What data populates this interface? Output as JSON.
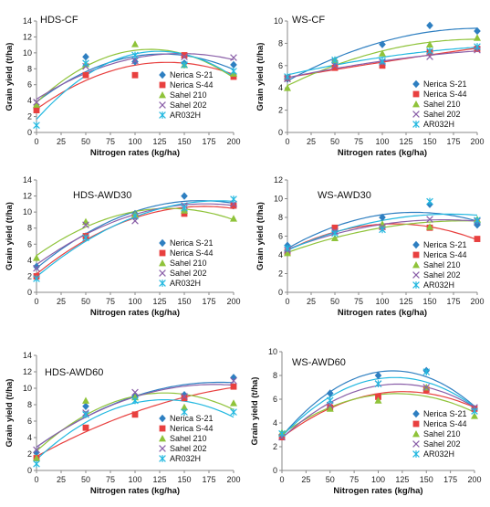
{
  "colors": {
    "Nerica S-21": "#2e7fc1",
    "Nerica S-44": "#e8403f",
    "Sahel 210": "#8fc33a",
    "Sahel 202": "#8a5fa8",
    "AR032H": "#22b8e0"
  },
  "markers": {
    "Nerica S-21": "diamond",
    "Nerica S-44": "square",
    "Sahel 210": "triangle",
    "Sahel 202": "x",
    "AR032H": "asterisk"
  },
  "chart_data": [
    {
      "type": "scatter",
      "title": "HDS-CF",
      "xlabel": "Nitrogen rates (kg/ha)",
      "ylabel": "Grain yield (t/ha)",
      "xlim": [
        0,
        200
      ],
      "ylim": [
        0,
        14
      ],
      "xticks": [
        0,
        25,
        50,
        75,
        100,
        125,
        150,
        175,
        200
      ],
      "yticks": [
        0,
        2,
        4,
        6,
        8,
        10,
        12,
        14
      ],
      "x": [
        0,
        50,
        100,
        150,
        200
      ],
      "legend": "right",
      "series": [
        {
          "name": "Nerica S-21",
          "values": [
            3.0,
            9.5,
            8.9,
            8.7,
            8.5
          ]
        },
        {
          "name": "Nerica S-44",
          "values": [
            2.8,
            7.2,
            7.2,
            9.7,
            7.0
          ]
        },
        {
          "name": "Sahel 210",
          "values": [
            3.5,
            8.6,
            11.1,
            8.5,
            7.4
          ]
        },
        {
          "name": "Sahel 202",
          "values": [
            3.8,
            8.3,
            9.0,
            9.5,
            9.4
          ]
        },
        {
          "name": "AR032H",
          "values": [
            0.9,
            8.7,
            9.7,
            8.5,
            7.7
          ]
        }
      ]
    },
    {
      "type": "scatter",
      "title": "WS-CF",
      "xlabel": "Nitrogen rates (kg/ha)",
      "ylabel": "Grain yield (t/ha)",
      "xlim": [
        0,
        200
      ],
      "ylim": [
        0,
        10
      ],
      "xticks": [
        0,
        25,
        50,
        75,
        100,
        125,
        150,
        175,
        200
      ],
      "yticks": [
        0,
        2,
        4,
        6,
        8,
        10
      ],
      "x": [
        0,
        50,
        100,
        150,
        200
      ],
      "legend": "right",
      "series": [
        {
          "name": "Nerica S-21",
          "values": [
            4.8,
            6.4,
            7.9,
            9.6,
            9.1
          ]
        },
        {
          "name": "Nerica S-44",
          "values": [
            4.9,
            5.8,
            6.0,
            7.2,
            7.5
          ]
        },
        {
          "name": "Sahel 210",
          "values": [
            4.0,
            6.5,
            7.1,
            7.9,
            8.5
          ]
        },
        {
          "name": "Sahel 202",
          "values": [
            4.8,
            6.0,
            6.3,
            6.8,
            7.4
          ]
        },
        {
          "name": "AR032H",
          "values": [
            5.0,
            6.5,
            6.4,
            7.3,
            7.7
          ]
        }
      ]
    },
    {
      "type": "scatter",
      "title": "HDS-AWD30",
      "xlabel": "Nitrogen rates (kg/ha)",
      "ylabel": "Grain yield (t/ha)",
      "xlim": [
        0,
        200
      ],
      "ylim": [
        0,
        14
      ],
      "xticks": [
        0,
        25,
        50,
        75,
        100,
        125,
        150,
        175,
        200
      ],
      "yticks": [
        0,
        2,
        4,
        6,
        8,
        10,
        12,
        14
      ],
      "x": [
        0,
        50,
        100,
        150,
        200
      ],
      "legend": "right",
      "series": [
        {
          "name": "Nerica S-21",
          "values": [
            3.2,
            7.0,
            9.8,
            12.0,
            10.8
          ]
        },
        {
          "name": "Nerica S-44",
          "values": [
            2.0,
            7.0,
            9.5,
            9.8,
            10.8
          ]
        },
        {
          "name": "Sahel 210",
          "values": [
            4.3,
            8.8,
            9.7,
            10.2,
            9.2
          ]
        },
        {
          "name": "Sahel 202",
          "values": [
            3.0,
            8.4,
            8.9,
            10.8,
            11.0
          ]
        },
        {
          "name": "AR032H",
          "values": [
            1.7,
            6.8,
            9.5,
            10.5,
            11.6
          ]
        }
      ]
    },
    {
      "type": "scatter",
      "title": "WS-AWD30",
      "xlabel": "Nitrogen rates (kg/ha)",
      "ylabel": "Grain yield (t/ha)",
      "xlim": [
        0,
        200
      ],
      "ylim": [
        0,
        12
      ],
      "xticks": [
        0,
        25,
        50,
        75,
        100,
        125,
        150,
        175,
        200
      ],
      "yticks": [
        0,
        2,
        4,
        6,
        8,
        10,
        12
      ],
      "x": [
        0,
        50,
        100,
        150,
        200
      ],
      "legend": "right",
      "series": [
        {
          "name": "Nerica S-21",
          "values": [
            5.0,
            6.5,
            8.0,
            9.4,
            7.2
          ]
        },
        {
          "name": "Nerica S-44",
          "values": [
            4.3,
            6.9,
            7.0,
            6.9,
            5.7
          ]
        },
        {
          "name": "Sahel 210",
          "values": [
            4.2,
            5.8,
            7.3,
            7.0,
            7.8
          ]
        },
        {
          "name": "Sahel 202",
          "values": [
            4.5,
            6.5,
            7.0,
            7.8,
            7.6
          ]
        },
        {
          "name": "AR032H",
          "values": [
            4.7,
            6.3,
            6.7,
            9.7,
            7.7
          ]
        }
      ]
    },
    {
      "type": "scatter",
      "title": "HDS-AWD60",
      "xlabel": "Nitrogen rates (kg/ha)",
      "ylabel": "Grain yield (t/ha)",
      "xlim": [
        0,
        200
      ],
      "ylim": [
        0,
        14
      ],
      "xticks": [
        0,
        25,
        50,
        75,
        100,
        125,
        150,
        175,
        200
      ],
      "yticks": [
        0,
        2,
        4,
        6,
        8,
        10,
        12,
        14
      ],
      "x": [
        0,
        50,
        100,
        150,
        200
      ],
      "legend": "right",
      "series": [
        {
          "name": "Nerica S-21",
          "values": [
            2.2,
            7.8,
            9.0,
            9.2,
            11.3
          ]
        },
        {
          "name": "Nerica S-44",
          "values": [
            1.5,
            5.2,
            6.8,
            8.8,
            10.2
          ]
        },
        {
          "name": "Sahel 210",
          "values": [
            1.5,
            8.5,
            8.9,
            7.7,
            8.2
          ]
        },
        {
          "name": "Sahel 202",
          "values": [
            2.5,
            7.0,
            9.5,
            9.0,
            10.9
          ]
        },
        {
          "name": "AR032H",
          "values": [
            0.8,
            6.8,
            8.5,
            7.1,
            7.1
          ]
        }
      ]
    },
    {
      "type": "scatter",
      "title": "WS-AWD60",
      "xlabel": "Nitrogen rates (kg/ha)",
      "ylabel": "Grain yield (t/ha)",
      "xlim": [
        0,
        200
      ],
      "ylim": [
        0,
        10
      ],
      "xticks": [
        0,
        25,
        50,
        75,
        100,
        125,
        150,
        175,
        200
      ],
      "yticks": [
        0,
        2,
        4,
        6,
        8,
        10
      ],
      "x": [
        0,
        50,
        100,
        150,
        200
      ],
      "legend": "right",
      "series": [
        {
          "name": "Nerica S-21",
          "values": [
            3.0,
            6.5,
            8.0,
            8.4,
            5.2
          ]
        },
        {
          "name": "Nerica S-44",
          "values": [
            2.8,
            5.3,
            6.2,
            6.8,
            5.2
          ]
        },
        {
          "name": "Sahel 210",
          "values": [
            3.2,
            5.2,
            5.9,
            7.0,
            4.6
          ]
        },
        {
          "name": "Sahel 202",
          "values": [
            2.8,
            5.5,
            7.3,
            7.0,
            5.3
          ]
        },
        {
          "name": "AR032H",
          "values": [
            3.1,
            5.9,
            7.3,
            8.3,
            5.0
          ]
        }
      ]
    }
  ]
}
